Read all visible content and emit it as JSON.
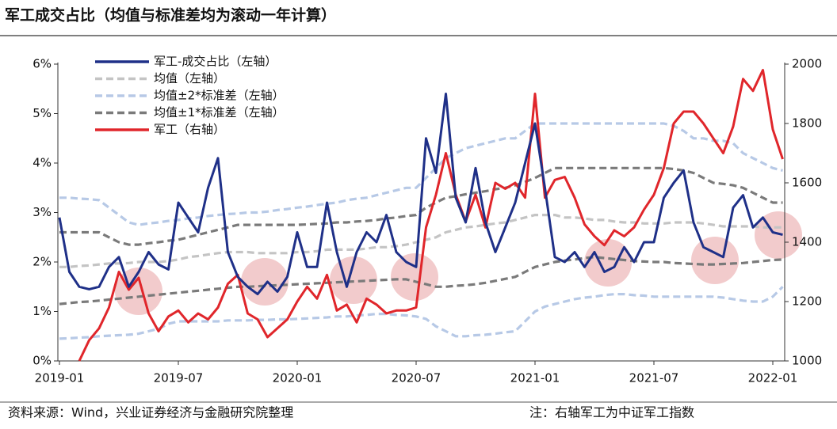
{
  "chart_data": {
    "type": "line",
    "title": "军工成交占比（均值与标准差均为滚动一年计算）",
    "source": "资料来源：Wind，兴业证券经济与金融研究院整理",
    "note": "注：右轴军工为中证军工指数",
    "categories": [
      "2019-01",
      null,
      null,
      null,
      null,
      null,
      null,
      null,
      null,
      null,
      null,
      null,
      "2019-07",
      null,
      null,
      null,
      null,
      null,
      null,
      null,
      null,
      null,
      null,
      null,
      "2020-01",
      null,
      null,
      null,
      null,
      null,
      null,
      null,
      null,
      null,
      null,
      null,
      "2020-07",
      null,
      null,
      null,
      null,
      null,
      null,
      null,
      null,
      null,
      null,
      null,
      "2021-01",
      null,
      null,
      null,
      null,
      null,
      null,
      null,
      null,
      null,
      null,
      null,
      "2021-07",
      null,
      null,
      null,
      null,
      null,
      null,
      null,
      null,
      null,
      null,
      null,
      "2022-01",
      null
    ],
    "ylim": [
      0,
      6
    ],
    "yticks": [
      {
        "value": 0,
        "label": "0%"
      },
      {
        "value": 1,
        "label": "1%"
      },
      {
        "value": 2,
        "label": "2%"
      },
      {
        "value": 3,
        "label": "3%"
      },
      {
        "value": 4,
        "label": "4%"
      },
      {
        "value": 5,
        "label": "5%"
      },
      {
        "value": 6,
        "label": "6%"
      }
    ],
    "y2lim": [
      1000,
      2000
    ],
    "y2ticks": [
      1000,
      1200,
      1400,
      1600,
      1800,
      2000
    ],
    "series": [
      {
        "name": "军工-成交占比（左轴）",
        "color": "#1f3088",
        "style": "solid",
        "values": [
          2.9,
          1.8,
          1.5,
          1.45,
          1.5,
          1.9,
          2.1,
          1.5,
          1.8,
          2.2,
          1.95,
          1.85,
          3.2,
          2.9,
          2.6,
          3.5,
          4.1,
          2.2,
          1.7,
          1.5,
          1.35,
          1.6,
          1.4,
          1.7,
          2.6,
          1.9,
          1.9,
          3.2,
          2.2,
          1.5,
          2.2,
          2.6,
          2.4,
          2.95,
          2.2,
          2.0,
          1.9,
          4.5,
          3.8,
          5.4,
          3.3,
          2.8,
          3.9,
          2.8,
          2.2,
          2.7,
          3.2,
          4.0,
          4.8,
          3.5,
          2.1,
          2.0,
          2.2,
          1.9,
          2.2,
          1.8,
          1.9,
          2.3,
          2.0,
          2.4,
          2.4,
          3.3,
          3.6,
          3.85,
          2.8,
          2.3,
          2.2,
          2.1,
          3.1,
          3.35,
          2.7,
          2.9,
          2.6,
          2.55
        ]
      },
      {
        "name": "均值（左轴）",
        "color": "#c4c4c4",
        "style": "dashed",
        "values": [
          1.9,
          1.9,
          1.92,
          1.93,
          1.95,
          1.97,
          1.97,
          1.98,
          2.0,
          2.0,
          2.0,
          2.02,
          2.05,
          2.1,
          2.12,
          2.15,
          2.18,
          2.2,
          2.2,
          2.2,
          2.18,
          2.18,
          2.18,
          2.18,
          2.2,
          2.2,
          2.22,
          2.25,
          2.25,
          2.25,
          2.25,
          2.27,
          2.3,
          2.3,
          2.32,
          2.35,
          2.4,
          2.45,
          2.5,
          2.6,
          2.65,
          2.7,
          2.72,
          2.75,
          2.78,
          2.8,
          2.85,
          2.9,
          2.95,
          2.95,
          2.95,
          2.9,
          2.9,
          2.88,
          2.85,
          2.85,
          2.82,
          2.8,
          2.8,
          2.78,
          2.78,
          2.78,
          2.8,
          2.8,
          2.8,
          2.78,
          2.75,
          2.72,
          2.72,
          2.72,
          2.72,
          2.7,
          2.7,
          2.7
        ]
      },
      {
        "name": "均值±2*标准差（左轴）",
        "color": "#b7c9e6",
        "style": "dashed",
        "upper": [
          3.3,
          3.3,
          3.28,
          3.27,
          3.25,
          3.1,
          2.95,
          2.8,
          2.75,
          2.78,
          2.8,
          2.83,
          2.85,
          2.88,
          2.9,
          2.93,
          2.95,
          2.97,
          2.98,
          3.0,
          3.0,
          3.02,
          3.05,
          3.07,
          3.1,
          3.12,
          3.15,
          3.18,
          3.2,
          3.25,
          3.28,
          3.3,
          3.35,
          3.4,
          3.45,
          3.5,
          3.5,
          3.7,
          3.9,
          4.1,
          4.2,
          4.3,
          4.35,
          4.4,
          4.45,
          4.5,
          4.5,
          4.65,
          4.8,
          4.8,
          4.8,
          4.8,
          4.8,
          4.8,
          4.8,
          4.8,
          4.8,
          4.8,
          4.8,
          4.8,
          4.8,
          4.8,
          4.75,
          4.65,
          4.5,
          4.5,
          4.45,
          4.45,
          4.4,
          4.2,
          4.1,
          4.0,
          3.9,
          3.85
        ],
        "lower": [
          0.45,
          0.46,
          0.47,
          0.48,
          0.5,
          0.51,
          0.52,
          0.53,
          0.55,
          0.6,
          0.65,
          0.75,
          0.8,
          0.8,
          0.8,
          0.8,
          0.8,
          0.82,
          0.82,
          0.82,
          0.83,
          0.83,
          0.84,
          0.84,
          0.85,
          0.86,
          0.87,
          0.88,
          0.9,
          0.9,
          0.92,
          0.93,
          0.95,
          0.95,
          0.93,
          0.92,
          0.9,
          0.85,
          0.7,
          0.6,
          0.5,
          0.5,
          0.52,
          0.53,
          0.55,
          0.58,
          0.6,
          0.8,
          1.0,
          1.1,
          1.15,
          1.2,
          1.25,
          1.28,
          1.3,
          1.33,
          1.35,
          1.35,
          1.33,
          1.32,
          1.3,
          1.3,
          1.3,
          1.3,
          1.3,
          1.3,
          1.3,
          1.28,
          1.25,
          1.22,
          1.2,
          1.2,
          1.3,
          1.5
        ]
      },
      {
        "name": "均值±1*标准差（左轴）",
        "color": "#7a7a7a",
        "style": "dashed",
        "upper": [
          2.6,
          2.6,
          2.6,
          2.6,
          2.6,
          2.5,
          2.4,
          2.35,
          2.35,
          2.38,
          2.4,
          2.43,
          2.45,
          2.5,
          2.55,
          2.6,
          2.65,
          2.7,
          2.75,
          2.75,
          2.75,
          2.75,
          2.75,
          2.75,
          2.75,
          2.76,
          2.77,
          2.78,
          2.8,
          2.8,
          2.82,
          2.83,
          2.85,
          2.88,
          2.9,
          2.93,
          2.95,
          3.1,
          3.2,
          3.3,
          3.33,
          3.37,
          3.4,
          3.43,
          3.47,
          3.5,
          3.55,
          3.62,
          3.7,
          3.8,
          3.9,
          3.9,
          3.9,
          3.9,
          3.9,
          3.9,
          3.9,
          3.9,
          3.9,
          3.9,
          3.9,
          3.9,
          3.88,
          3.85,
          3.8,
          3.7,
          3.6,
          3.58,
          3.55,
          3.5,
          3.4,
          3.3,
          3.2,
          3.2
        ],
        "lower": [
          1.15,
          1.17,
          1.19,
          1.2,
          1.22,
          1.24,
          1.26,
          1.28,
          1.3,
          1.32,
          1.34,
          1.36,
          1.38,
          1.4,
          1.42,
          1.44,
          1.46,
          1.48,
          1.5,
          1.5,
          1.51,
          1.52,
          1.53,
          1.54,
          1.55,
          1.56,
          1.57,
          1.58,
          1.59,
          1.6,
          1.61,
          1.62,
          1.63,
          1.64,
          1.65,
          1.65,
          1.6,
          1.55,
          1.5,
          1.5,
          1.52,
          1.53,
          1.55,
          1.58,
          1.62,
          1.66,
          1.7,
          1.8,
          1.9,
          1.95,
          2.0,
          2.03,
          2.05,
          2.08,
          2.1,
          2.08,
          2.06,
          2.04,
          2.02,
          2.01,
          2.0,
          2.0,
          1.98,
          1.97,
          1.96,
          1.95,
          1.95,
          1.96,
          1.97,
          1.98,
          2.0,
          2.02,
          2.04,
          2.05
        ]
      },
      {
        "name": "军工（右轴）",
        "color": "#e0262b",
        "style": "solid",
        "axis": "y2",
        "values": [
          null,
          null,
          1000,
          1070,
          1110,
          1180,
          1300,
          1240,
          1280,
          1160,
          1100,
          1150,
          1170,
          1130,
          1160,
          1140,
          1180,
          1260,
          1290,
          1160,
          1140,
          1080,
          1110,
          1140,
          1200,
          1250,
          1210,
          1290,
          1170,
          1190,
          1130,
          1210,
          1190,
          1160,
          1170,
          1170,
          1180,
          1450,
          1560,
          1700,
          1560,
          1470,
          1560,
          1450,
          1600,
          1580,
          1600,
          1550,
          1900,
          1550,
          1610,
          1620,
          1550,
          1460,
          1420,
          1390,
          1440,
          1420,
          1450,
          1510,
          1560,
          1650,
          1800,
          1840,
          1840,
          1800,
          1750,
          1700,
          1790,
          1950,
          1910,
          1980,
          1780,
          1680
        ]
      }
    ]
  }
}
